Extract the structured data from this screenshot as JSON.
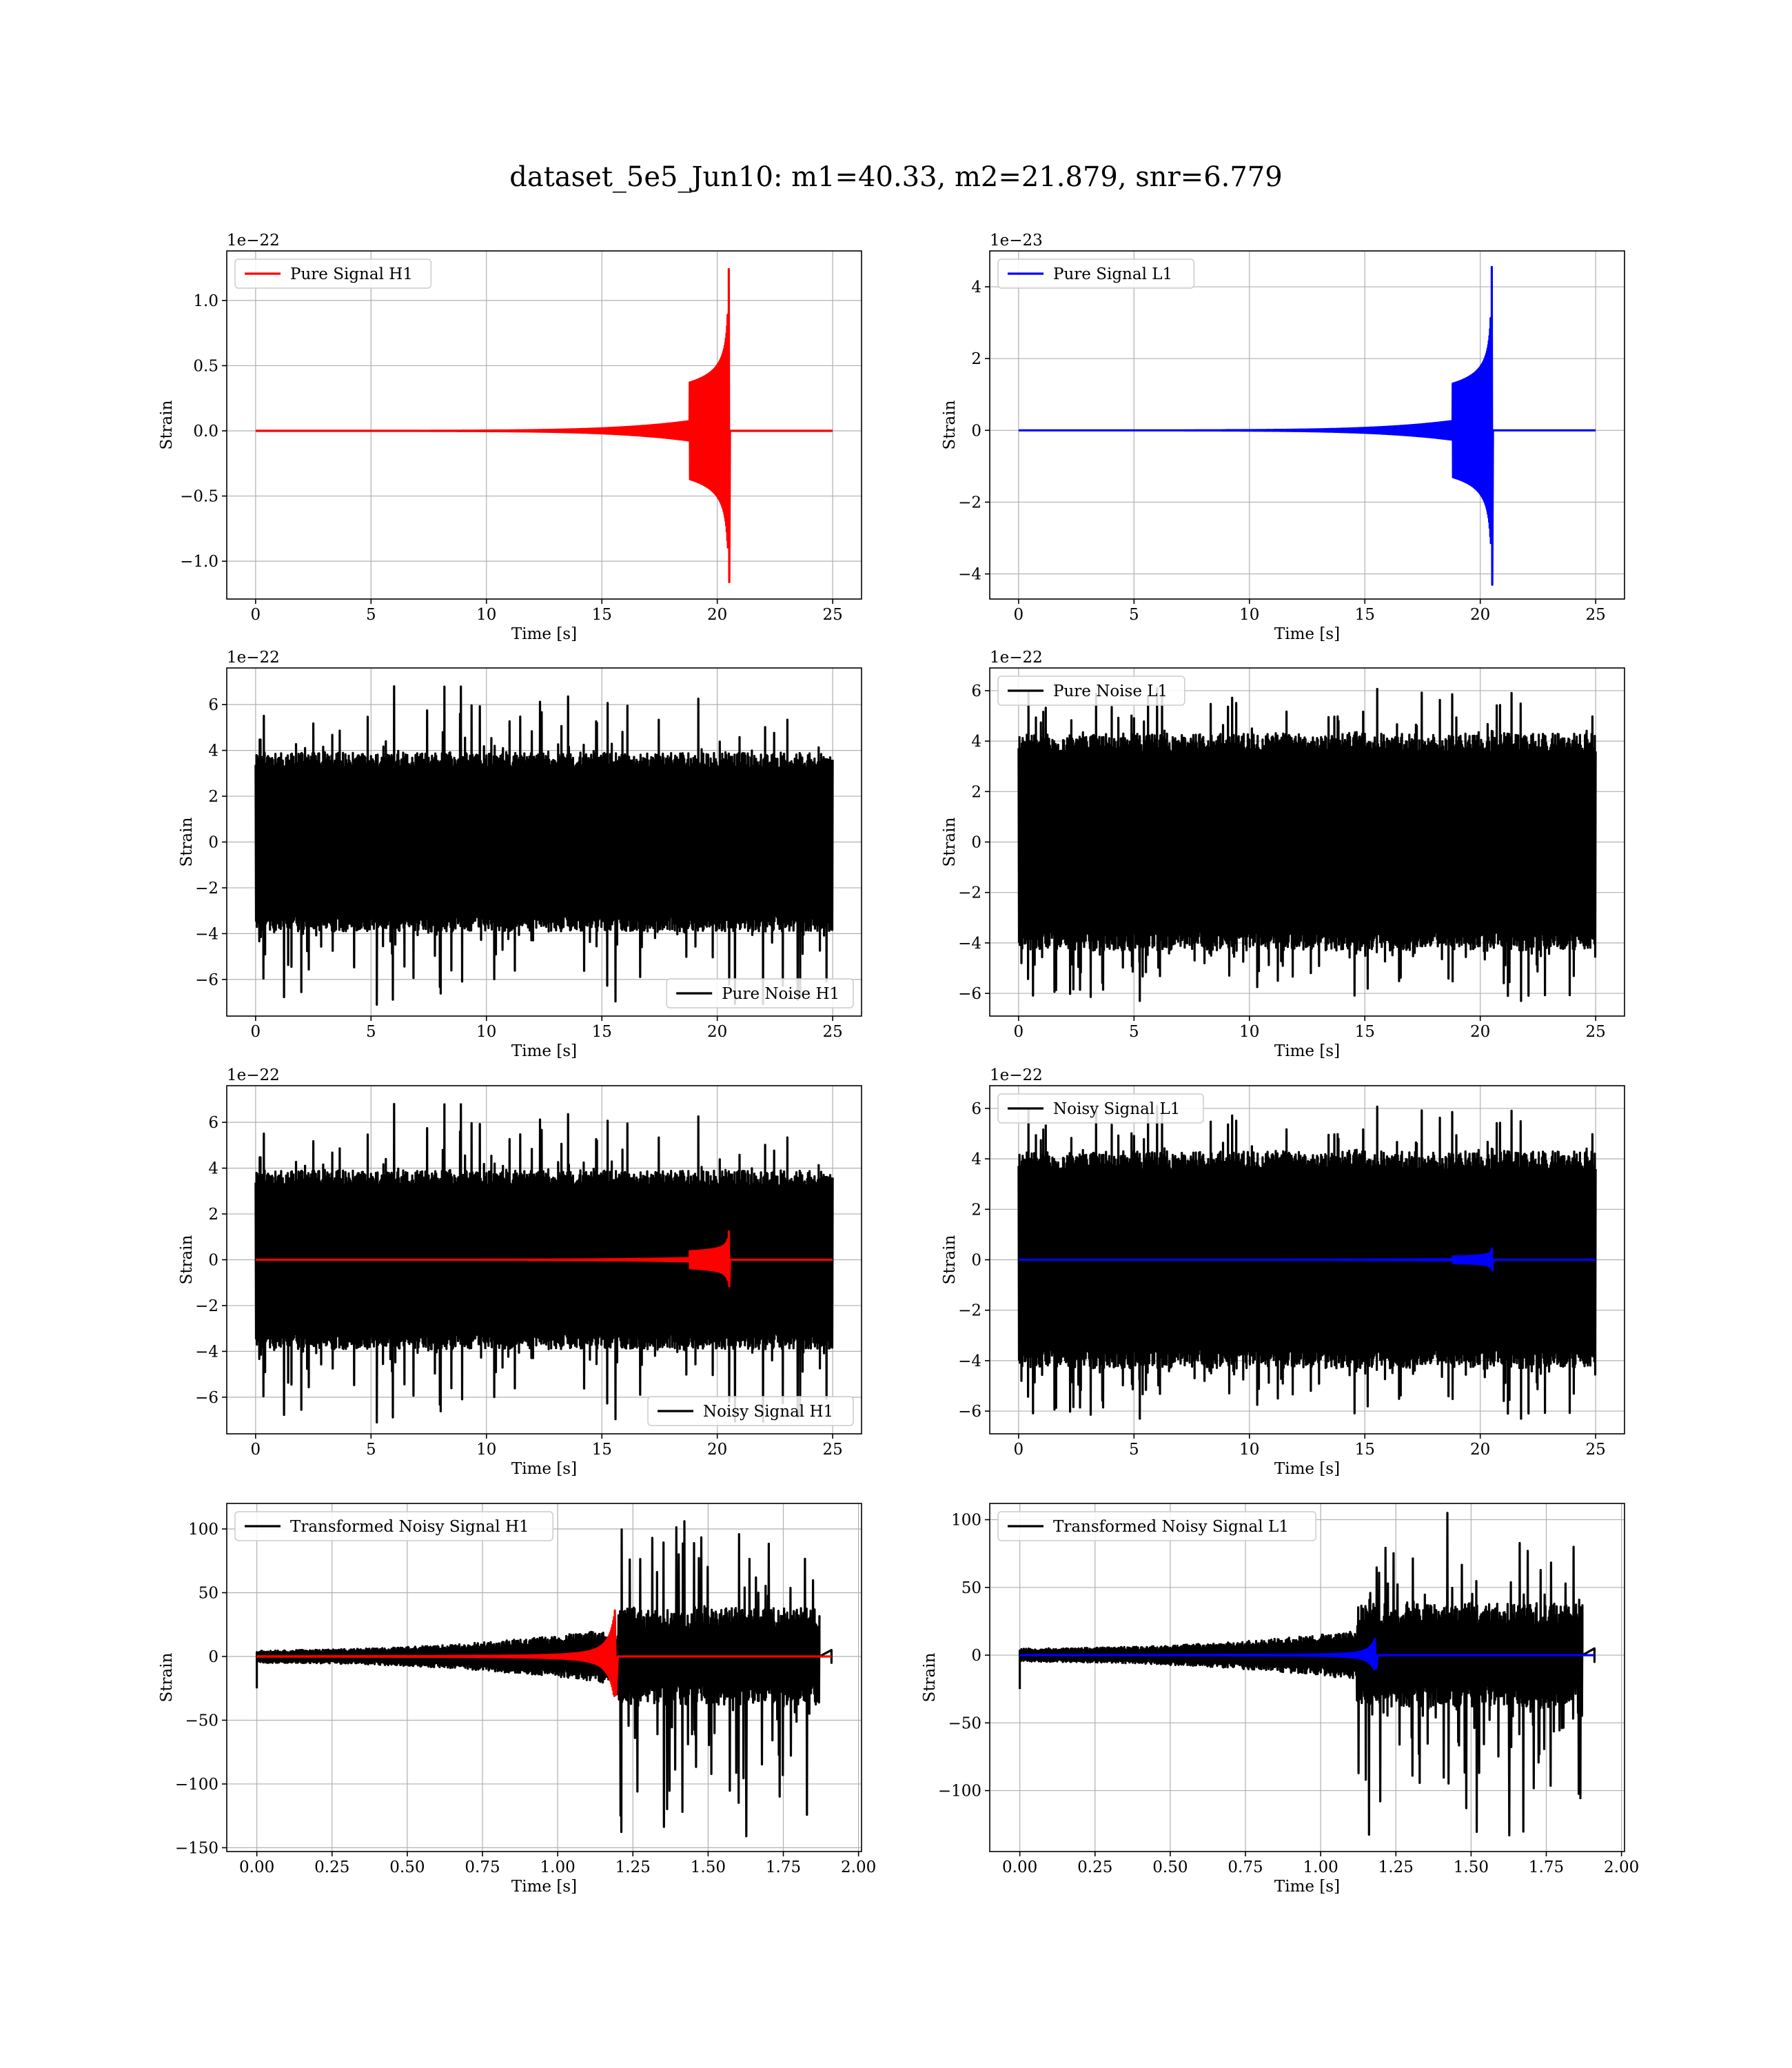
{
  "figure": {
    "title": "dataset_5e5_Jun10: m1=40.33, m2=21.879, snr=6.779"
  },
  "chart_data": [
    {
      "id": "pure-signal-h1",
      "type": "line",
      "ylabel": "Strain",
      "xlabel": "Time [s]",
      "offset_text": "1e−22",
      "xlim": [
        -1.25,
        26.25
      ],
      "ylim": [
        -1.29,
        1.38
      ],
      "xticks": [
        0,
        5,
        10,
        15,
        20,
        25
      ],
      "xtick_labels": [
        "0",
        "5",
        "10",
        "15",
        "20",
        "25"
      ],
      "yticks": [
        -1.0,
        -0.5,
        0.0,
        0.5,
        1.0
      ],
      "ytick_labels": [
        "−1.0",
        "−0.5",
        "0.0",
        "0.5",
        "1.0"
      ],
      "legend_loc": "upper left",
      "series": [
        {
          "name": "Pure Signal H1",
          "color": "#ff0000",
          "kind": "chirp",
          "t0": 0,
          "tc": 20.5,
          "tend": 25,
          "amp": 1.24,
          "amp_neg": 1.16,
          "band_amp": 0.37,
          "band_start": 18.8
        }
      ]
    },
    {
      "id": "pure-signal-l1",
      "type": "line",
      "ylabel": "Strain",
      "xlabel": "Time [s]",
      "offset_text": "1e−23",
      "xlim": [
        -1.25,
        26.25
      ],
      "ylim": [
        -4.7,
        5.0
      ],
      "xticks": [
        0,
        5,
        10,
        15,
        20,
        25
      ],
      "xtick_labels": [
        "0",
        "5",
        "10",
        "15",
        "20",
        "25"
      ],
      "yticks": [
        -4,
        -2,
        0,
        2,
        4
      ],
      "ytick_labels": [
        "−4",
        "−2",
        "0",
        "2",
        "4"
      ],
      "legend_loc": "upper left",
      "series": [
        {
          "name": "Pure Signal L1",
          "color": "#0000ff",
          "kind": "chirp",
          "t0": 0,
          "tc": 20.5,
          "tend": 25,
          "amp": 4.55,
          "amp_neg": 4.3,
          "band_amp": 1.3,
          "band_start": 18.8
        }
      ]
    },
    {
      "id": "pure-noise-h1",
      "type": "line",
      "ylabel": "Strain",
      "xlabel": "Time [s]",
      "offset_text": "1e−22",
      "xlim": [
        -1.25,
        26.25
      ],
      "ylim": [
        -7.6,
        7.6
      ],
      "xticks": [
        0,
        5,
        10,
        15,
        20,
        25
      ],
      "xtick_labels": [
        "0",
        "5",
        "10",
        "15",
        "20",
        "25"
      ],
      "yticks": [
        -6,
        -4,
        -2,
        0,
        2,
        4,
        6
      ],
      "ytick_labels": [
        "−6",
        "−4",
        "−2",
        "0",
        "2",
        "4",
        "6"
      ],
      "legend_loc": "lower right",
      "series": [
        {
          "name": "Pure Noise H1",
          "color": "#000000",
          "kind": "noise",
          "t0": 0,
          "tend": 25,
          "band": 3.9,
          "peak": 6.8,
          "trough": -7.1,
          "seed": 11
        }
      ]
    },
    {
      "id": "pure-noise-l1",
      "type": "line",
      "ylabel": "Strain",
      "xlabel": "Time [s]",
      "offset_text": "1e−22",
      "xlim": [
        -1.25,
        26.25
      ],
      "ylim": [
        -6.9,
        6.9
      ],
      "xticks": [
        0,
        5,
        10,
        15,
        20,
        25
      ],
      "xtick_labels": [
        "0",
        "5",
        "10",
        "15",
        "20",
        "25"
      ],
      "yticks": [
        -6,
        -4,
        -2,
        0,
        2,
        4,
        6
      ],
      "ytick_labels": [
        "−6",
        "−4",
        "−2",
        "0",
        "2",
        "4",
        "6"
      ],
      "legend_loc": "upper left",
      "series": [
        {
          "name": "Pure Noise L1",
          "color": "#000000",
          "kind": "noise",
          "t0": 0,
          "tend": 25,
          "band": 4.3,
          "peak": 6.1,
          "trough": -6.3,
          "seed": 23
        }
      ]
    },
    {
      "id": "noisy-signal-h1",
      "type": "line",
      "ylabel": "Strain",
      "xlabel": "Time [s]",
      "offset_text": "1e−22",
      "xlim": [
        -1.25,
        26.25
      ],
      "ylim": [
        -7.6,
        7.6
      ],
      "xticks": [
        0,
        5,
        10,
        15,
        20,
        25
      ],
      "xtick_labels": [
        "0",
        "5",
        "10",
        "15",
        "20",
        "25"
      ],
      "yticks": [
        -6,
        -4,
        -2,
        0,
        2,
        4,
        6
      ],
      "ytick_labels": [
        "−6",
        "−4",
        "−2",
        "0",
        "2",
        "4",
        "6"
      ],
      "legend_loc": "lower right",
      "series": [
        {
          "name": "Noisy Signal H1",
          "color": "#000000",
          "kind": "noise",
          "t0": 0,
          "tend": 25,
          "band": 3.9,
          "peak": 6.8,
          "trough": -7.1,
          "seed": 11
        },
        {
          "color": "#ff0000",
          "kind": "chirp",
          "t0": 0,
          "tc": 20.5,
          "tend": 25,
          "amp": 1.24,
          "amp_neg": 1.16,
          "band_amp": 0.37,
          "band_start": 18.8
        }
      ]
    },
    {
      "id": "noisy-signal-l1",
      "type": "line",
      "ylabel": "Strain",
      "xlabel": "Time [s]",
      "offset_text": "1e−22",
      "xlim": [
        -1.25,
        26.25
      ],
      "ylim": [
        -6.9,
        6.9
      ],
      "xticks": [
        0,
        5,
        10,
        15,
        20,
        25
      ],
      "xtick_labels": [
        "0",
        "5",
        "10",
        "15",
        "20",
        "25"
      ],
      "yticks": [
        -6,
        -4,
        -2,
        0,
        2,
        4,
        6
      ],
      "ytick_labels": [
        "−6",
        "−4",
        "−2",
        "0",
        "2",
        "4",
        "6"
      ],
      "legend_loc": "upper left",
      "series": [
        {
          "name": "Noisy Signal L1",
          "color": "#000000",
          "kind": "noise",
          "t0": 0,
          "tend": 25,
          "band": 4.3,
          "peak": 6.1,
          "trough": -6.3,
          "seed": 23
        },
        {
          "color": "#0000ff",
          "kind": "chirp",
          "t0": 0,
          "tc": 20.5,
          "tend": 25,
          "amp": 0.455,
          "amp_neg": 0.43,
          "band_amp": 0.13,
          "band_start": 18.8
        }
      ]
    },
    {
      "id": "transformed-noisy-signal-h1",
      "type": "line",
      "ylabel": "Strain",
      "xlabel": "Time [s]",
      "offset_text": "",
      "xlim": [
        -0.1,
        2.01
      ],
      "ylim": [
        -153,
        120
      ],
      "xticks": [
        0.0,
        0.25,
        0.5,
        0.75,
        1.0,
        1.25,
        1.5,
        1.75,
        2.0
      ],
      "xtick_labels": [
        "0.00",
        "0.25",
        "0.50",
        "0.75",
        "1.00",
        "1.25",
        "1.50",
        "1.75",
        "2.00"
      ],
      "yticks": [
        -150,
        -100,
        -50,
        0,
        50,
        100
      ],
      "ytick_labels": [
        "−150",
        "−100",
        "−50",
        "0",
        "50",
        "100"
      ],
      "legend_loc": "upper left",
      "series": [
        {
          "name": "Transformed Noisy Signal H1",
          "color": "#000000",
          "kind": "tnoise",
          "t0": 0,
          "tend": 1.87,
          "flat_end": 1.91,
          "jump": 1.2,
          "pre_start": 5,
          "pre_end": 22,
          "band": 38,
          "peak": 106,
          "trough": -141,
          "seed": 37
        },
        {
          "color": "#ff0000",
          "kind": "tchirp",
          "t0": 0,
          "tc": 1.19,
          "tend": 1.91,
          "amp": 36,
          "amp_neg": 30
        }
      ]
    },
    {
      "id": "transformed-noisy-signal-l1",
      "type": "line",
      "ylabel": "Strain",
      "xlabel": "Time [s]",
      "offset_text": "",
      "xlim": [
        -0.1,
        2.01
      ],
      "ylim": [
        -145,
        112
      ],
      "xticks": [
        0.0,
        0.25,
        0.5,
        0.75,
        1.0,
        1.25,
        1.5,
        1.75,
        2.0
      ],
      "xtick_labels": [
        "0.00",
        "0.25",
        "0.50",
        "0.75",
        "1.00",
        "1.25",
        "1.50",
        "1.75",
        "2.00"
      ],
      "yticks": [
        -100,
        -50,
        0,
        50,
        100
      ],
      "ytick_labels": [
        "−100",
        "−50",
        "0",
        "50",
        "100"
      ],
      "legend_loc": "upper left",
      "series": [
        {
          "name": "Transformed Noisy Signal L1",
          "color": "#000000",
          "kind": "tnoise",
          "t0": 0,
          "tend": 1.87,
          "flat_end": 1.91,
          "jump": 1.12,
          "pre_start": 5,
          "pre_end": 18,
          "band": 38,
          "peak": 105,
          "trough": -133,
          "seed": 53
        },
        {
          "color": "#0000ff",
          "kind": "tchirp",
          "t0": 0,
          "tc": 1.18,
          "tend": 1.91,
          "amp": 12,
          "amp_neg": 10
        }
      ]
    }
  ]
}
